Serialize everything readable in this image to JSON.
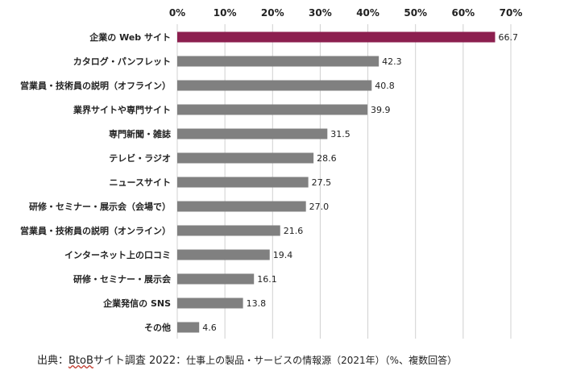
{
  "chart_data": {
    "type": "bar",
    "orientation": "horizontal",
    "categories": [
      "企業の Web サイト",
      "カタログ・パンフレット",
      "営業員・技術員の説明（オフライン）",
      "業界サイトや専門サイト",
      "専門新聞・雑誌",
      "テレビ・ラジオ",
      "ニュースサイト",
      "研修・セミナー・展示会（会場で）",
      "営業員・技術員の説明（オンライン）",
      "インターネット上の口コミ",
      "研修・セミナー・展示会",
      "企業発信の SNS",
      "その他"
    ],
    "values": [
      66.7,
      42.3,
      40.8,
      39.9,
      31.5,
      28.6,
      27.5,
      27.0,
      21.6,
      19.4,
      16.1,
      13.8,
      4.6
    ],
    "value_labels": [
      "66.7",
      "42.3",
      "40.8",
      "39.9",
      "31.5",
      "28.6",
      "27.5",
      "27.0",
      "21.6",
      "19.4",
      "16.1",
      "13.8",
      "4.6"
    ],
    "x_ticks": [
      "0%",
      "10%",
      "20%",
      "30%",
      "40%",
      "50%",
      "60%",
      "70%"
    ],
    "xlim": [
      0,
      70
    ],
    "grid": true,
    "x_axis_position": "top",
    "highlight_index": 0,
    "colors": {
      "highlight": "#8c1f4f",
      "bar": "#808080",
      "grid": "#d0d0d0"
    }
  },
  "source": {
    "prefix": "出典：",
    "brand": "BtoB",
    "title": "サイト調査 2022：",
    "description": "仕事上の製品・サービスの情報源（2021年）（%、複数回答）"
  }
}
